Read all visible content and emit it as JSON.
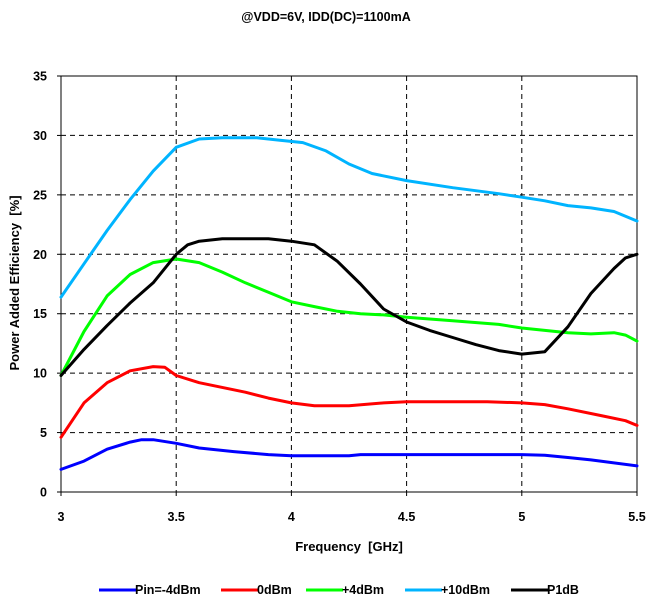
{
  "chart_data": {
    "type": "line",
    "title": "@VDD=6V, IDD(DC)=1100mA",
    "xlabel": "Frequency  [GHz]",
    "ylabel": "Power Added Efficiency  [%]",
    "xlim": [
      3,
      5.5
    ],
    "ylim": [
      0,
      35
    ],
    "xticks": [
      "3",
      "3.5",
      "4",
      "4.5",
      "5",
      "5.5"
    ],
    "yticks": [
      "0",
      "5",
      "10",
      "15",
      "20",
      "25",
      "30",
      "35"
    ],
    "grid": "dashed vertical and horizontal",
    "legend_position": "bottom",
    "series": [
      {
        "name": "Pin=-4dBm",
        "color": "#0000ff",
        "points": [
          [
            3.0,
            1.9
          ],
          [
            3.1,
            2.6
          ],
          [
            3.2,
            3.6
          ],
          [
            3.3,
            4.2
          ],
          [
            3.35,
            4.4
          ],
          [
            3.4,
            4.4
          ],
          [
            3.5,
            4.1
          ],
          [
            3.6,
            3.7
          ],
          [
            3.75,
            3.4
          ],
          [
            3.9,
            3.15
          ],
          [
            4.0,
            3.05
          ],
          [
            4.25,
            3.05
          ],
          [
            4.3,
            3.15
          ],
          [
            4.5,
            3.15
          ],
          [
            5.0,
            3.15
          ],
          [
            5.1,
            3.1
          ],
          [
            5.2,
            2.9
          ],
          [
            5.3,
            2.7
          ],
          [
            5.5,
            2.2
          ]
        ]
      },
      {
        "name": "0dBm",
        "color": "#ff0000",
        "points": [
          [
            3.0,
            4.6
          ],
          [
            3.1,
            7.5
          ],
          [
            3.2,
            9.2
          ],
          [
            3.3,
            10.2
          ],
          [
            3.4,
            10.55
          ],
          [
            3.45,
            10.5
          ],
          [
            3.5,
            9.8
          ],
          [
            3.6,
            9.2
          ],
          [
            3.8,
            8.4
          ],
          [
            3.9,
            7.9
          ],
          [
            4.0,
            7.5
          ],
          [
            4.1,
            7.25
          ],
          [
            4.25,
            7.25
          ],
          [
            4.4,
            7.5
          ],
          [
            4.5,
            7.6
          ],
          [
            4.85,
            7.6
          ],
          [
            5.0,
            7.5
          ],
          [
            5.1,
            7.35
          ],
          [
            5.2,
            7.0
          ],
          [
            5.35,
            6.4
          ],
          [
            5.45,
            6.0
          ],
          [
            5.5,
            5.6
          ]
        ]
      },
      {
        "name": "+4dBm",
        "color": "#00ff00",
        "points": [
          [
            3.0,
            9.8
          ],
          [
            3.1,
            13.5
          ],
          [
            3.2,
            16.5
          ],
          [
            3.3,
            18.3
          ],
          [
            3.4,
            19.3
          ],
          [
            3.5,
            19.6
          ],
          [
            3.6,
            19.3
          ],
          [
            3.7,
            18.5
          ],
          [
            3.8,
            17.6
          ],
          [
            3.9,
            16.8
          ],
          [
            4.0,
            16.0
          ],
          [
            4.1,
            15.6
          ],
          [
            4.2,
            15.2
          ],
          [
            4.3,
            15.0
          ],
          [
            4.4,
            14.9
          ],
          [
            4.5,
            14.7
          ],
          [
            4.7,
            14.4
          ],
          [
            4.9,
            14.1
          ],
          [
            5.0,
            13.8
          ],
          [
            5.1,
            13.6
          ],
          [
            5.2,
            13.4
          ],
          [
            5.3,
            13.3
          ],
          [
            5.4,
            13.4
          ],
          [
            5.45,
            13.2
          ],
          [
            5.5,
            12.7
          ]
        ]
      },
      {
        "name": "+10dBm",
        "color": "#00b4ff",
        "points": [
          [
            3.0,
            16.4
          ],
          [
            3.1,
            19.2
          ],
          [
            3.2,
            22.0
          ],
          [
            3.3,
            24.6
          ],
          [
            3.4,
            27.0
          ],
          [
            3.5,
            29.0
          ],
          [
            3.6,
            29.7
          ],
          [
            3.7,
            29.8
          ],
          [
            3.85,
            29.8
          ],
          [
            3.95,
            29.6
          ],
          [
            4.05,
            29.4
          ],
          [
            4.15,
            28.7
          ],
          [
            4.25,
            27.6
          ],
          [
            4.35,
            26.8
          ],
          [
            4.5,
            26.2
          ],
          [
            4.7,
            25.6
          ],
          [
            4.9,
            25.1
          ],
          [
            5.0,
            24.8
          ],
          [
            5.1,
            24.5
          ],
          [
            5.2,
            24.1
          ],
          [
            5.3,
            23.9
          ],
          [
            5.4,
            23.6
          ],
          [
            5.45,
            23.2
          ],
          [
            5.5,
            22.8
          ]
        ]
      },
      {
        "name": "P1dB",
        "color": "#000000",
        "points": [
          [
            3.0,
            9.8
          ],
          [
            3.1,
            12.0
          ],
          [
            3.2,
            14.0
          ],
          [
            3.3,
            15.9
          ],
          [
            3.4,
            17.6
          ],
          [
            3.5,
            20.0
          ],
          [
            3.55,
            20.8
          ],
          [
            3.6,
            21.1
          ],
          [
            3.7,
            21.3
          ],
          [
            3.8,
            21.3
          ],
          [
            3.9,
            21.3
          ],
          [
            4.0,
            21.1
          ],
          [
            4.1,
            20.8
          ],
          [
            4.2,
            19.4
          ],
          [
            4.3,
            17.5
          ],
          [
            4.4,
            15.4
          ],
          [
            4.5,
            14.3
          ],
          [
            4.6,
            13.6
          ],
          [
            4.7,
            13.0
          ],
          [
            4.8,
            12.4
          ],
          [
            4.9,
            11.9
          ],
          [
            5.0,
            11.6
          ],
          [
            5.1,
            11.8
          ],
          [
            5.2,
            13.9
          ],
          [
            5.3,
            16.7
          ],
          [
            5.4,
            18.8
          ],
          [
            5.45,
            19.7
          ],
          [
            5.5,
            20.0
          ]
        ]
      }
    ]
  }
}
